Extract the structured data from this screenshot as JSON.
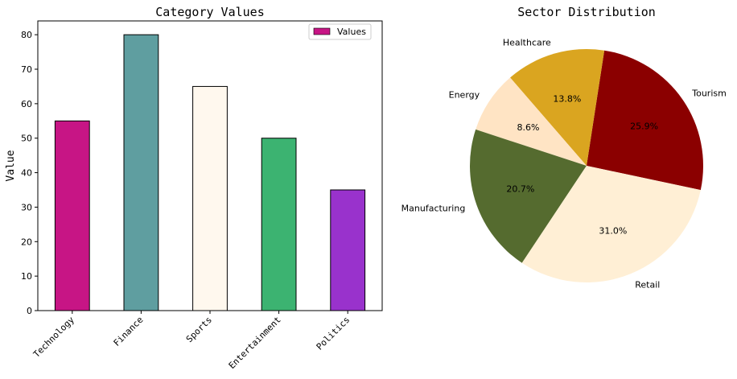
{
  "chart_data": [
    {
      "type": "bar",
      "title": "Category Values",
      "xlabel": "",
      "ylabel": "Value",
      "categories": [
        "Technology",
        "Finance",
        "Sports",
        "Entertainment",
        "Politics"
      ],
      "values": [
        55,
        80,
        65,
        50,
        35
      ],
      "colors": [
        "#c71585",
        "#5f9ea0",
        "#fff8ee",
        "#3cb371",
        "#9932cc"
      ],
      "ylim": [
        0,
        84
      ],
      "yticks": [
        0,
        10,
        20,
        30,
        40,
        50,
        60,
        70,
        80
      ],
      "grid": false,
      "legend": {
        "position": "top-right",
        "entries": [
          "Values"
        ],
        "color": "#c71585"
      }
    },
    {
      "type": "pie",
      "title": "Sector Distribution",
      "labels": [
        "Tourism",
        "Healthcare",
        "Energy",
        "Manufacturing",
        "Retail"
      ],
      "values": [
        25.9,
        13.8,
        8.6,
        20.7,
        31.0
      ],
      "pct_labels": [
        "25.9%",
        "13.8%",
        "8.6%",
        "20.7%",
        "31.0%"
      ],
      "colors": [
        "#8b0000",
        "#daa520",
        "#ffe4c4",
        "#556b2f",
        "#ffefd5"
      ],
      "start_angle": -12,
      "direction": "counterclockwise"
    }
  ]
}
